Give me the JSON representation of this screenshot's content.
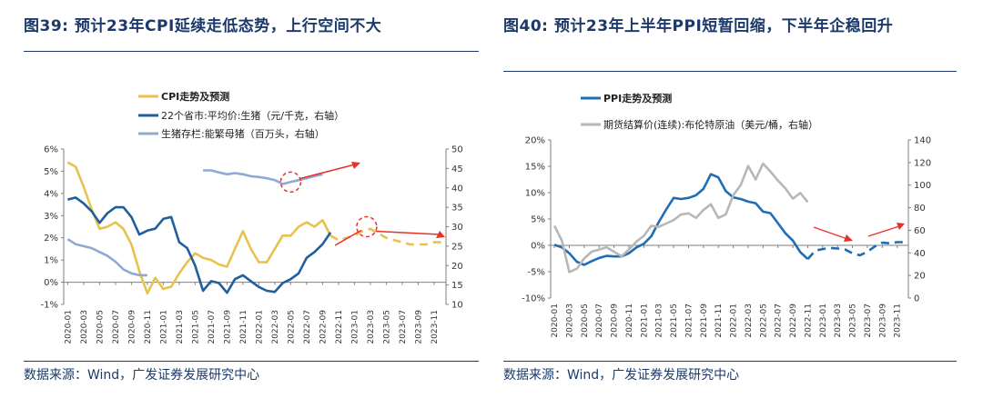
{
  "left_chart": {
    "figure_label": "图39:",
    "title": "预计23年CPI延续走低态势，上行空间不大",
    "source": "数据来源：Wind，广发证券发展研究中心"
  },
  "right_chart": {
    "figure_label": "图40:",
    "title": "预计23年上半年PPI短暂回缩，下半年企稳回升",
    "source": "数据来源：Wind，广发证券发展研究中心"
  },
  "colors": {
    "cpi": "#e8c24d",
    "pork": "#1f5f9e",
    "sows": "#8fa9d4",
    "ppi": "#1f6db5",
    "oil": "#b7b7b7",
    "arrow": "#e8302c",
    "title": "#1b3a6b"
  },
  "chart_data": [
    {
      "type": "line",
      "title": "预计23年CPI延续走低态势，上行空间不大",
      "x": [
        "2020-01",
        "2020-02",
        "2020-03",
        "2020-04",
        "2020-05",
        "2020-06",
        "2020-07",
        "2020-08",
        "2020-09",
        "2020-10",
        "2020-11",
        "2020-12",
        "2021-01",
        "2021-02",
        "2021-03",
        "2021-04",
        "2021-05",
        "2021-06",
        "2021-07",
        "2021-08",
        "2021-09",
        "2021-10",
        "2021-11",
        "2021-12",
        "2022-01",
        "2022-02",
        "2022-03",
        "2022-04",
        "2022-05",
        "2022-06",
        "2022-07",
        "2022-08",
        "2022-09",
        "2022-10",
        "2022-11",
        "2022-12",
        "2023-01",
        "2023-02",
        "2023-03",
        "2023-04",
        "2023-05",
        "2023-06",
        "2023-07",
        "2023-08",
        "2023-09",
        "2023-10",
        "2023-11",
        "2023-12"
      ],
      "x_tick_labels": [
        "2020-01",
        "2020-03",
        "2020-05",
        "2020-07",
        "2020-09",
        "2020-11",
        "2021-01",
        "2021-03",
        "2021-05",
        "2021-07",
        "2021-09",
        "2021-11",
        "2022-01",
        "2022-03",
        "2022-05",
        "2022-07",
        "2022-09",
        "2022-11",
        "2023-01",
        "2023-03",
        "2023-05",
        "2023-07",
        "2023-09",
        "2023-11"
      ],
      "series": [
        {
          "name": "CPI走势及预测",
          "axis": "left",
          "color_key": "cpi",
          "values": [
            5.4,
            5.2,
            4.3,
            3.3,
            2.4,
            2.5,
            2.7,
            2.4,
            1.7,
            0.5,
            -0.5,
            0.2,
            -0.3,
            -0.2,
            0.4,
            0.9,
            1.3,
            1.1,
            1.0,
            0.8,
            0.7,
            1.5,
            2.3,
            1.5,
            0.9,
            0.9,
            1.5,
            2.1,
            2.1,
            2.5,
            2.7,
            2.5,
            2.8,
            2.1,
            null,
            null,
            null,
            null,
            null,
            null,
            null,
            null,
            null,
            null,
            null,
            null,
            null,
            null
          ]
        },
        {
          "name": "CPI走势及预测(预测)",
          "axis": "left",
          "color_key": "cpi",
          "dashed": true,
          "values": [
            null,
            null,
            null,
            null,
            null,
            null,
            null,
            null,
            null,
            null,
            null,
            null,
            null,
            null,
            null,
            null,
            null,
            null,
            null,
            null,
            null,
            null,
            null,
            null,
            null,
            null,
            null,
            null,
            null,
            null,
            null,
            null,
            null,
            2.1,
            1.9,
            2.0,
            2.1,
            2.3,
            2.4,
            2.2,
            2.0,
            1.9,
            1.8,
            1.7,
            1.7,
            1.7,
            1.8,
            1.8
          ]
        },
        {
          "name": "22个省市:平均价:生猪（元/千克，右轴）",
          "axis": "right",
          "color_key": "pork",
          "values": [
            37,
            37.5,
            36,
            34,
            31,
            33.5,
            35,
            35,
            32.5,
            28,
            29,
            29.5,
            32,
            32.5,
            26,
            24.5,
            20,
            13.5,
            16,
            15.5,
            13,
            16.5,
            17.5,
            16,
            14.5,
            13.5,
            13.2,
            15.5,
            16.5,
            18,
            22,
            23.5,
            25.5,
            28.5,
            null,
            null,
            null,
            null,
            null,
            null,
            null,
            null,
            null,
            null,
            null,
            null,
            null,
            null
          ]
        },
        {
          "name": "生猪存栏:能繁母猪（百万头，右轴）",
          "axis": "right",
          "color_key": "sows",
          "values": [
            26.8,
            25.5,
            25,
            24.5,
            23.5,
            22.5,
            21,
            19,
            18,
            17.5,
            17.5,
            null,
            null,
            null,
            null,
            null,
            null,
            44.5,
            44.5,
            44,
            43.5,
            43.8,
            43.5,
            43,
            42.8,
            42.5,
            42,
            41,
            41.5,
            42,
            42.5,
            43,
            43.5,
            null,
            null,
            null,
            null,
            null,
            null,
            null,
            null,
            null,
            null,
            null,
            null,
            null,
            null,
            null
          ]
        }
      ],
      "y_left": {
        "min": -1,
        "max": 6,
        "step": 1,
        "unit": "%",
        "ticks": [
          "-1%",
          "0%",
          "1%",
          "2%",
          "3%",
          "4%",
          "5%",
          "6%"
        ]
      },
      "y_right": {
        "min": 10,
        "max": 50,
        "step": 5,
        "ticks": [
          "10",
          "15",
          "20",
          "25",
          "30",
          "35",
          "40",
          "45",
          "50"
        ]
      },
      "legend_position": "top-left",
      "annotations": [
        "red circle at 2022-05 on 能繁母猪 series with arrow pointing up-right",
        "red circle near 2023-03 on CPI forecast with arrow pointing down-right"
      ]
    },
    {
      "type": "line",
      "title": "预计23年上半年PPI短暂回缩，下半年企稳回升",
      "x": [
        "2020-01",
        "2020-02",
        "2020-03",
        "2020-04",
        "2020-05",
        "2020-06",
        "2020-07",
        "2020-08",
        "2020-09",
        "2020-10",
        "2020-11",
        "2020-12",
        "2021-01",
        "2021-02",
        "2021-03",
        "2021-04",
        "2021-05",
        "2021-06",
        "2021-07",
        "2021-08",
        "2021-09",
        "2021-10",
        "2021-11",
        "2021-12",
        "2022-01",
        "2022-02",
        "2022-03",
        "2022-04",
        "2022-05",
        "2022-06",
        "2022-07",
        "2022-08",
        "2022-09",
        "2022-10",
        "2022-11",
        "2022-12",
        "2023-01",
        "2023-02",
        "2023-03",
        "2023-04",
        "2023-05",
        "2023-06",
        "2023-07",
        "2023-08",
        "2023-09",
        "2023-10",
        "2023-11",
        "2023-12"
      ],
      "x_tick_labels": [
        "2020-01",
        "2020-03",
        "2020-05",
        "2020-07",
        "2020-09",
        "2020-11",
        "2021-01",
        "2021-03",
        "2021-05",
        "2021-07",
        "2021-09",
        "2021-11",
        "2022-01",
        "2022-03",
        "2022-05",
        "2022-07",
        "2022-09",
        "2022-11",
        "2023-01",
        "2023-03",
        "2023-05",
        "2023-07",
        "2023-09",
        "2023-11"
      ],
      "series": [
        {
          "name": "PPI走势及预测",
          "axis": "left",
          "color_key": "ppi",
          "values": [
            0.1,
            -0.4,
            -1.5,
            -3.1,
            -3.7,
            -3.0,
            -2.4,
            -2.0,
            -2.1,
            -2.1,
            -1.5,
            -0.4,
            0.3,
            1.7,
            4.4,
            6.8,
            9.0,
            8.8,
            9.0,
            9.5,
            10.7,
            13.5,
            12.9,
            10.3,
            9.1,
            8.8,
            8.3,
            8.0,
            6.4,
            6.1,
            4.2,
            2.3,
            0.9,
            -1.3,
            -2.6,
            null,
            null,
            null,
            null,
            null,
            null,
            null,
            null,
            null,
            null,
            null,
            null,
            null
          ]
        },
        {
          "name": "PPI走势及预测(预测)",
          "axis": "left",
          "color_key": "ppi",
          "dashed": true,
          "values": [
            null,
            null,
            null,
            null,
            null,
            null,
            null,
            null,
            null,
            null,
            null,
            null,
            null,
            null,
            null,
            null,
            null,
            null,
            null,
            null,
            null,
            null,
            null,
            null,
            null,
            null,
            null,
            null,
            null,
            null,
            null,
            null,
            null,
            null,
            -2.6,
            -1.0,
            -0.7,
            -0.5,
            -0.6,
            -0.8,
            -1.5,
            -1.9,
            -1.2,
            -0.2,
            0.5,
            0.4,
            0.6,
            0.6
          ]
        },
        {
          "name": "期货结算价(连续):布伦特原油（美元/桶，右轴）",
          "axis": "right",
          "color_key": "oil",
          "values": [
            64,
            51,
            23,
            26,
            35,
            41,
            43,
            45,
            41,
            37,
            43,
            50,
            55,
            64,
            63,
            66,
            69,
            74,
            75,
            71,
            78,
            83,
            71,
            74,
            91,
            100,
            117,
            105,
            119,
            112,
            104,
            97,
            88,
            93,
            85,
            null,
            null,
            null,
            null,
            null,
            null,
            null,
            null,
            null,
            null,
            null,
            null,
            null
          ]
        }
      ],
      "y_left": {
        "min": -10,
        "max": 20,
        "step": 5,
        "unit": "%",
        "ticks": [
          "-10%",
          "-5%",
          "0%",
          "5%",
          "10%",
          "15%",
          "20%"
        ]
      },
      "y_right": {
        "min": 0,
        "max": 140,
        "step": 20,
        "ticks": [
          "0",
          "20",
          "40",
          "60",
          "80",
          "100",
          "120",
          "140"
        ]
      },
      "legend_position": "top-left",
      "annotations": [
        "red arrow pointing down-right near 2023-03",
        "red arrow pointing up-right near 2023-09"
      ]
    }
  ]
}
